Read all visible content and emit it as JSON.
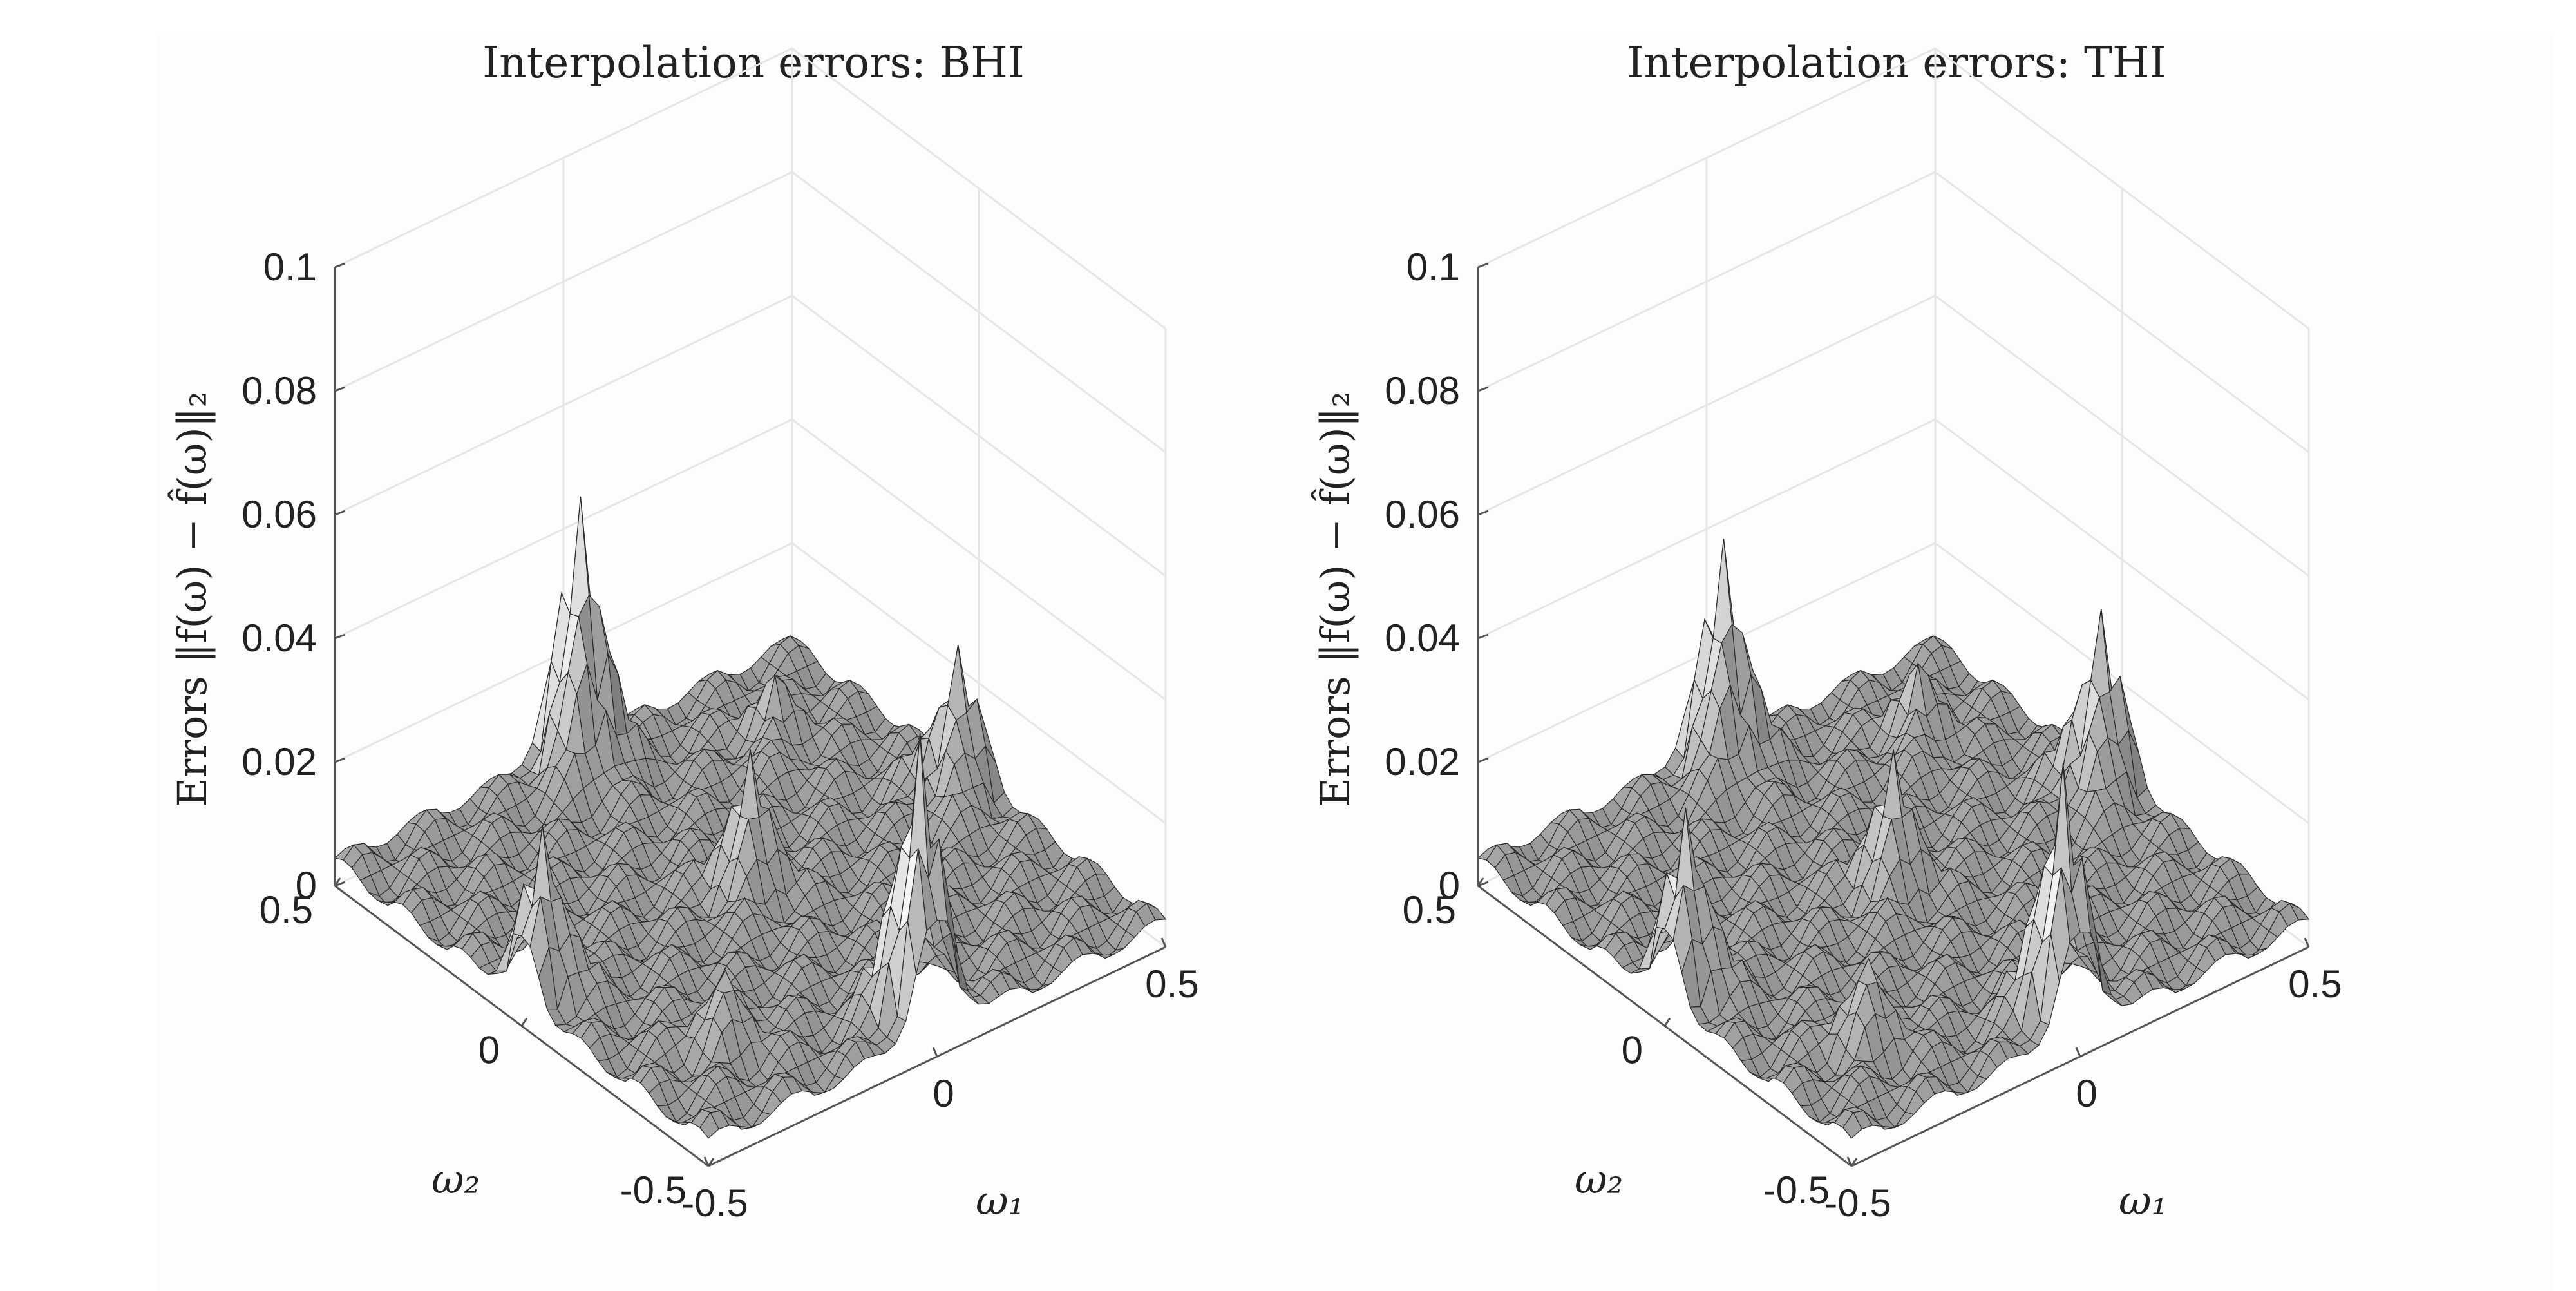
{
  "chart_data": [
    {
      "type": "surface",
      "title": "Interpolation errors: BHI",
      "zlabel": "Errors ‖f(ω) − f̂(ω)‖₂",
      "xlabel": "ω₁",
      "ylabel": "ω₂",
      "xlim": [
        -0.5,
        0.5
      ],
      "ylim": [
        -0.5,
        0.5
      ],
      "zlim": [
        0,
        0.1
      ],
      "xticks": [
        "-0.5",
        "0",
        "0.5"
      ],
      "yticks": [
        "-0.5",
        "0",
        "0.5"
      ],
      "zticks": [
        "0",
        "0.02",
        "0.04",
        "0.06",
        "0.08",
        "0.1"
      ],
      "grid": true,
      "colormap": "gray",
      "peaks": [
        {
          "x": 0.0,
          "y": -0.45,
          "z": 0.045
        },
        {
          "x": -0.45,
          "y": 0.0,
          "z": 0.025
        },
        {
          "x": 0.45,
          "y": 0.0,
          "z": 0.022
        },
        {
          "x": 0.0,
          "y": 0.45,
          "z": 0.042
        },
        {
          "x": 0.0,
          "y": 0.0,
          "z": 0.02
        },
        {
          "x": -0.3,
          "y": -0.3,
          "z": 0.01
        },
        {
          "x": 0.3,
          "y": 0.3,
          "z": 0.01
        }
      ]
    },
    {
      "type": "surface",
      "title": "Interpolation errors: THI",
      "zlabel": "Errors ‖f(ω) − f̂(ω)‖₂",
      "xlabel": "ω₁",
      "ylabel": "ω₂",
      "xlim": [
        -0.5,
        0.5
      ],
      "ylim": [
        -0.5,
        0.5
      ],
      "zlim": [
        0,
        0.1
      ],
      "xticks": [
        "-0.5",
        "0",
        "0.5"
      ],
      "yticks": [
        "-0.5",
        "0",
        "0.5"
      ],
      "zticks": [
        "0",
        "0.02",
        "0.04",
        "0.06",
        "0.08",
        "0.1"
      ],
      "grid": true,
      "colormap": "gray",
      "peaks": [
        {
          "x": 0.0,
          "y": -0.45,
          "z": 0.04
        },
        {
          "x": -0.45,
          "y": 0.0,
          "z": 0.028
        },
        {
          "x": 0.45,
          "y": 0.0,
          "z": 0.028
        },
        {
          "x": 0.0,
          "y": 0.45,
          "z": 0.035
        },
        {
          "x": 0.0,
          "y": 0.0,
          "z": 0.02
        },
        {
          "x": -0.3,
          "y": -0.3,
          "z": 0.012
        },
        {
          "x": 0.3,
          "y": 0.3,
          "z": 0.012
        }
      ]
    }
  ]
}
